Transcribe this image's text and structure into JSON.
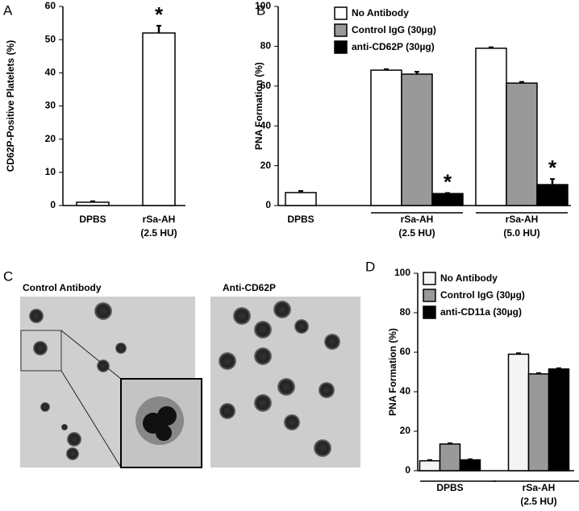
{
  "chart_data": [
    {
      "type": "bar",
      "panel": "A",
      "ylabel": "CD62P-Positive Platelets (%)",
      "categories": [
        [
          "DPBS"
        ],
        [
          "rSa-AH",
          "(2.5 HU)"
        ]
      ],
      "series": [
        {
          "color": "#ffffff",
          "values": [
            1,
            52
          ],
          "errors": [
            0.3,
            2.2
          ],
          "significance": [
            null,
            "*"
          ]
        }
      ],
      "ylim": [
        0,
        60
      ],
      "yticks": [
        0,
        10,
        20,
        30,
        40,
        50,
        60
      ]
    },
    {
      "type": "bar",
      "panel": "B",
      "ylabel": "PNA Formation (%)",
      "categories": [
        [
          "DPBS"
        ],
        [
          "rSa-AH",
          "(2.5 HU)"
        ],
        [
          "rSa-AH",
          "(5.0 HU)"
        ]
      ],
      "series": [
        {
          "name": "No Antibody",
          "color": "#ffffff",
          "values": [
            6.5,
            68,
            79
          ],
          "errors": [
            0.8,
            0.5,
            0.5
          ],
          "significance": [
            null,
            null,
            null
          ]
        },
        {
          "name": "Control IgG (30µg)",
          "color": "#999999",
          "values": [
            null,
            66,
            61.5
          ],
          "errors": [
            null,
            1.2,
            0.6
          ],
          "significance": [
            null,
            null,
            null
          ]
        },
        {
          "name": "anti-CD62P (30µg)",
          "color": "#000000",
          "values": [
            null,
            6,
            10.5
          ],
          "errors": [
            null,
            0.3,
            2.8
          ],
          "significance": [
            null,
            "*",
            "*"
          ]
        }
      ],
      "ylim": [
        0,
        100
      ],
      "yticks": [
        0,
        20,
        40,
        60,
        80,
        100
      ]
    },
    {
      "type": "bar",
      "panel": "D",
      "ylabel": "PNA Formation (%)",
      "categories": [
        [
          "DPBS"
        ],
        [
          "rSa-AH",
          "(2.5 HU)"
        ]
      ],
      "series": [
        {
          "name": "No Antibody",
          "color": "#f4f4f4",
          "values": [
            5,
            59
          ],
          "errors": [
            0.4,
            0.5
          ],
          "significance": [
            null,
            null
          ]
        },
        {
          "name": "Control IgG (30µg)",
          "color": "#999999",
          "values": [
            13.5,
            49
          ],
          "errors": [
            0.4,
            0.4
          ],
          "significance": [
            null,
            null
          ]
        },
        {
          "name": "anti-CD11a (30µg)",
          "color": "#000000",
          "values": [
            5.5,
            51.5
          ],
          "errors": [
            0.3,
            0.4
          ],
          "significance": [
            null,
            null
          ]
        }
      ],
      "ylim": [
        0,
        100
      ],
      "yticks": [
        0,
        20,
        40,
        60,
        80,
        100
      ]
    }
  ],
  "micrographs": {
    "panel": "C",
    "images": [
      {
        "title": "Control Antibody"
      },
      {
        "title": "Anti-CD62P"
      }
    ]
  }
}
